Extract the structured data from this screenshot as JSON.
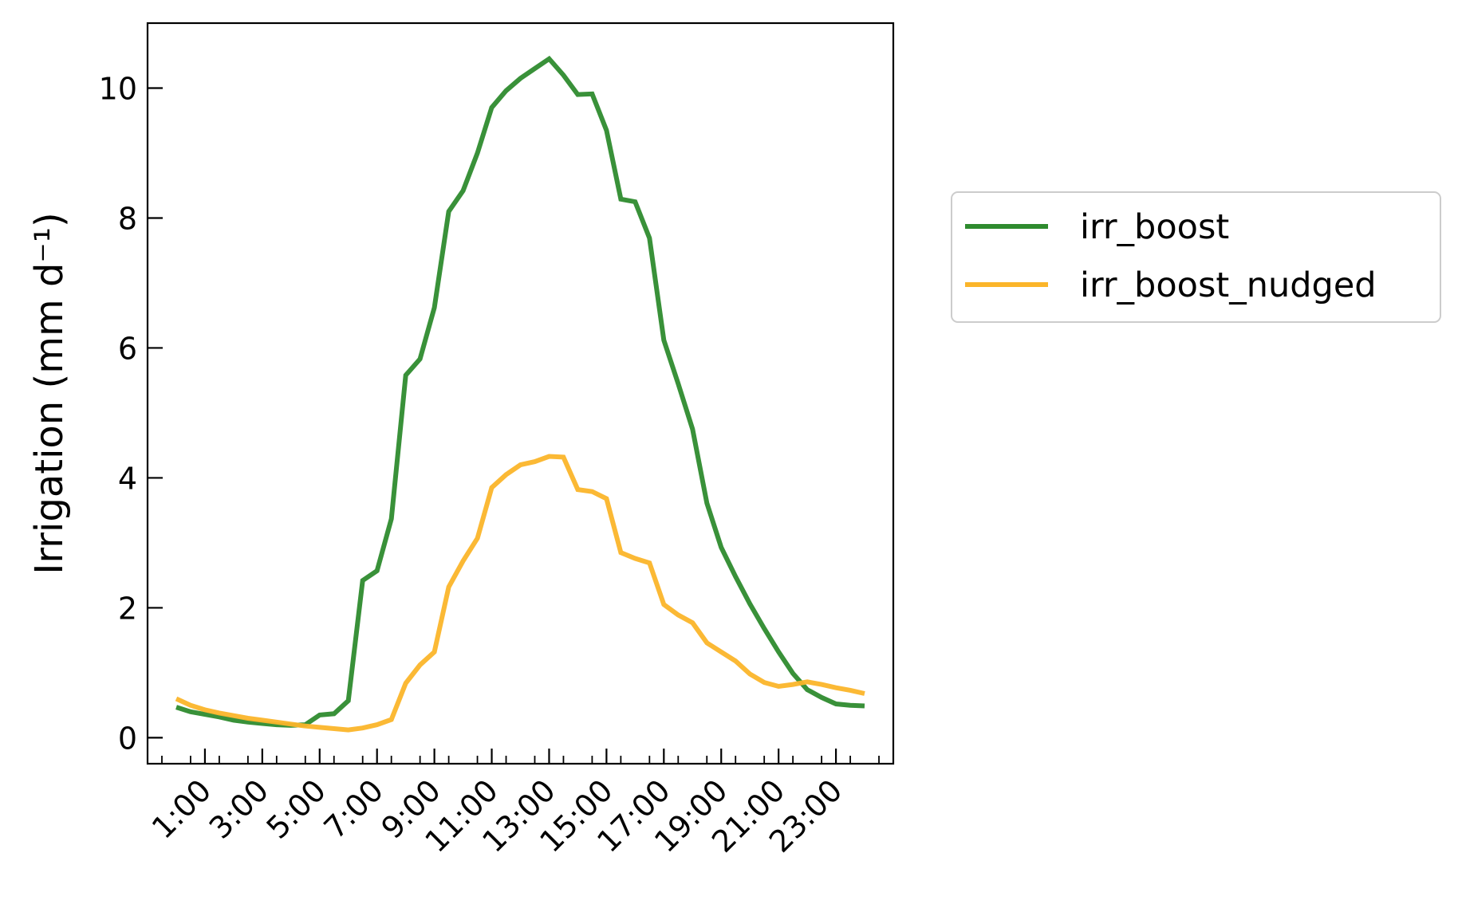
{
  "chart_data": {
    "type": "line",
    "title": "",
    "xlabel": "",
    "ylabel": "Irrigation (mm d⁻¹)",
    "x_tick_labels": [
      "1:00",
      "3:00",
      "5:00",
      "7:00",
      "9:00",
      "11:00",
      "13:00",
      "15:00",
      "17:00",
      "19:00",
      "21:00",
      "23:00"
    ],
    "xlim": [
      0.0,
      26.0
    ],
    "ylim": [
      -0.4,
      11.0
    ],
    "y_ticks": [
      0,
      2,
      4,
      6,
      8,
      10
    ],
    "grid": false,
    "legend_position": "outside-right",
    "x": [
      1.0,
      1.5,
      2.0,
      2.5,
      3.0,
      3.5,
      4.0,
      4.5,
      5.0,
      5.5,
      6.0,
      6.5,
      7.0,
      7.5,
      8.0,
      8.5,
      9.0,
      9.5,
      10.0,
      10.5,
      11.0,
      11.5,
      12.0,
      12.5,
      13.0,
      13.5,
      14.0,
      14.5,
      15.0,
      15.5,
      16.0,
      16.5,
      17.0,
      17.5,
      18.0,
      18.5,
      19.0,
      19.5,
      20.0,
      20.5,
      21.0,
      21.5,
      22.0,
      22.5,
      23.0,
      23.5,
      24.0,
      24.5,
      25.0
    ],
    "series": [
      {
        "name": "irr_boost",
        "color": "#2e8b2e",
        "values": [
          0.47,
          0.4,
          0.36,
          0.32,
          0.27,
          0.24,
          0.22,
          0.2,
          0.19,
          0.2,
          0.35,
          0.37,
          0.57,
          2.42,
          2.57,
          3.37,
          5.58,
          5.83,
          6.62,
          8.1,
          8.42,
          9.0,
          9.7,
          9.96,
          10.15,
          10.3,
          10.45,
          10.2,
          9.9,
          9.91,
          9.35,
          8.29,
          8.25,
          7.69,
          6.12,
          5.45,
          4.75,
          3.61,
          2.93,
          2.48,
          2.06,
          1.68,
          1.32,
          0.99,
          0.74,
          0.62,
          0.52,
          0.5,
          0.49
        ]
      },
      {
        "name": "irr_boost_nudged",
        "color": "#fbb52a",
        "values": [
          0.6,
          0.5,
          0.43,
          0.38,
          0.34,
          0.3,
          0.27,
          0.24,
          0.21,
          0.18,
          0.16,
          0.14,
          0.12,
          0.15,
          0.2,
          0.28,
          0.84,
          1.12,
          1.32,
          2.32,
          2.72,
          3.07,
          3.85,
          4.05,
          4.2,
          4.25,
          4.33,
          4.32,
          3.82,
          3.79,
          3.68,
          2.85,
          2.76,
          2.69,
          2.05,
          1.89,
          1.77,
          1.46,
          1.32,
          1.18,
          0.98,
          0.85,
          0.79,
          0.82,
          0.86,
          0.82,
          0.77,
          0.73,
          0.68
        ]
      }
    ]
  }
}
